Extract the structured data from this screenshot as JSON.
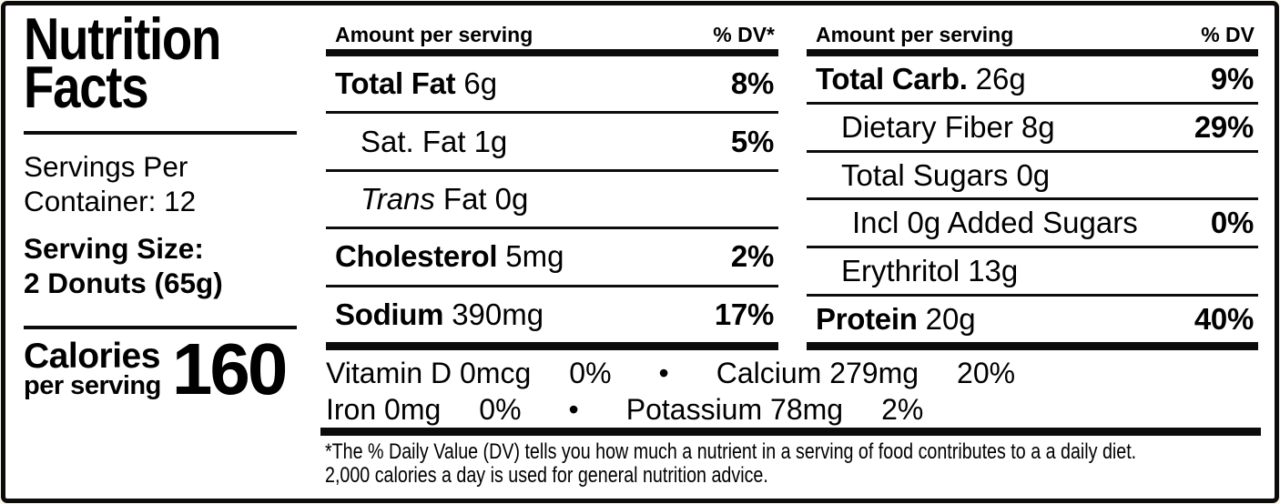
{
  "label_title": {
    "line1": "Nutrition",
    "line2": "Facts"
  },
  "servings_per_container": {
    "line1": "Servings Per",
    "line2": "Container: 12"
  },
  "serving_size": {
    "line1": "Serving Size:",
    "line2": "2 Donuts (65g)"
  },
  "calories": {
    "label": "Calories",
    "sublabel": "per serving",
    "value": "160"
  },
  "columns": [
    {
      "header": {
        "amount_label": "Amount per serving",
        "dv_label": "% DV*"
      },
      "rows": [
        {
          "label": "Total Fat",
          "amount": "6g",
          "dv": "8%"
        },
        {
          "label": "Sat. Fat",
          "amount": "1g",
          "dv": "5%"
        },
        {
          "label_italic": "Trans",
          "label": "Fat",
          "amount": "0g",
          "dv": ""
        },
        {
          "label": "Cholesterol",
          "amount": "5mg",
          "dv": "2%"
        },
        {
          "label": "Sodium",
          "amount": "390mg",
          "dv": "17%"
        }
      ]
    },
    {
      "header": {
        "amount_label": "Amount per serving",
        "dv_label": "% DV"
      },
      "rows": [
        {
          "label": "Total Carb.",
          "amount": "26g",
          "dv": "9%"
        },
        {
          "label": "Dietary Fiber",
          "amount": "8g",
          "dv": "29%"
        },
        {
          "label": "Total Sugars",
          "amount": "0g",
          "dv": ""
        },
        {
          "label": "Incl 0g Added Sugars",
          "amount": "",
          "dv": "0%"
        },
        {
          "label": "Erythritol",
          "amount": "13g",
          "dv": ""
        },
        {
          "label": "Protein",
          "amount": "20g",
          "dv": "40%"
        }
      ]
    }
  ],
  "micronutrients": {
    "line1": {
      "n1": "Vitamin D 0mcg",
      "v1": "0%",
      "bullet": "•",
      "n2": "Calcium 279mg",
      "v2": "20%"
    },
    "line2": {
      "n1": "Iron 0mg",
      "v1": "0%",
      "bullet": "•",
      "n2": "Potassium 78mg",
      "v2": "2%"
    }
  },
  "footnote": {
    "line1": "*The % Daily Value (DV) tells you how much a nutrient in a serving of food contributes to a a daily diet.",
    "line2": "2,000 calories a day is used for general nutrition advice."
  }
}
